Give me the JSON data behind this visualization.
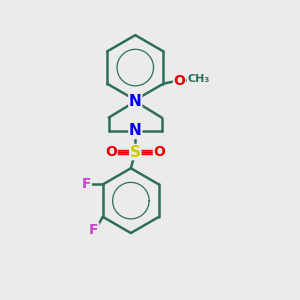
{
  "background_color": "#ebebeb",
  "bond_color": "#2d6e5e",
  "bond_width": 1.8,
  "atom_colors": {
    "N": "#0000ee",
    "O": "#ee0000",
    "S": "#cccc00",
    "F": "#cc44cc",
    "C": "#2d6e5e"
  },
  "font_size": 10,
  "fig_size": [
    3.0,
    3.0
  ],
  "dpi": 100
}
